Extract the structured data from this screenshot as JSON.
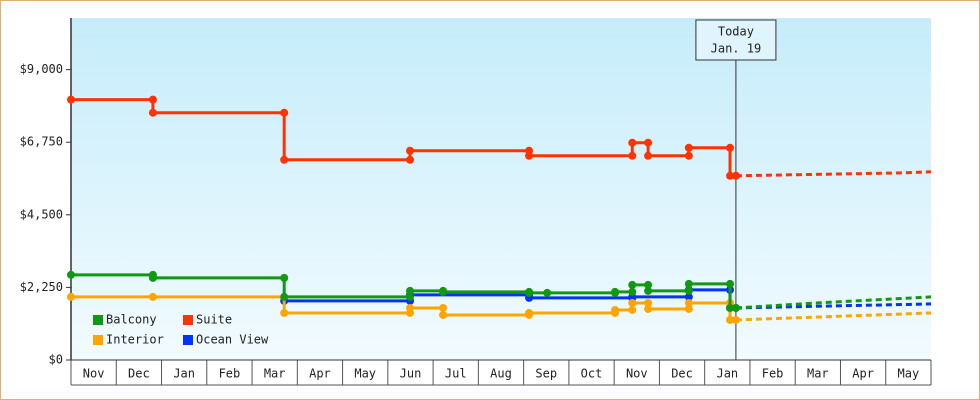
{
  "chart_data": {
    "type": "step-line",
    "xlim": [
      0,
      19
    ],
    "xticks": [
      {
        "value": 0.5,
        "label": "Nov"
      },
      {
        "value": 1.5,
        "label": "Dec"
      },
      {
        "value": 2.5,
        "label": "Jan"
      },
      {
        "value": 3.5,
        "label": "Feb"
      },
      {
        "value": 4.5,
        "label": "Mar"
      },
      {
        "value": 5.5,
        "label": "Apr"
      },
      {
        "value": 6.5,
        "label": "May"
      },
      {
        "value": 7.5,
        "label": "Jun"
      },
      {
        "value": 8.5,
        "label": "Jul"
      },
      {
        "value": 9.5,
        "label": "Aug"
      },
      {
        "value": 10.5,
        "label": "Sep"
      },
      {
        "value": 11.5,
        "label": "Oct"
      },
      {
        "value": 12.5,
        "label": "Nov"
      },
      {
        "value": 13.5,
        "label": "Dec"
      },
      {
        "value": 14.5,
        "label": "Jan"
      },
      {
        "value": 15.5,
        "label": "Feb"
      },
      {
        "value": 16.5,
        "label": "Mar"
      },
      {
        "value": 17.5,
        "label": "Apr"
      },
      {
        "value": 18.5,
        "label": "May"
      }
    ],
    "ylim": [
      0,
      10600
    ],
    "yticks": [
      {
        "value": 0,
        "label": "$0"
      },
      {
        "value": 2250,
        "label": "$2,250"
      },
      {
        "value": 4500,
        "label": "$4,500"
      },
      {
        "value": 6750,
        "label": "$6,750"
      },
      {
        "value": 9000,
        "label": "$9,000"
      }
    ],
    "legend": "lower left",
    "today": {
      "x": 14.69,
      "text": "Today",
      "date": "Jan. 19"
    },
    "series": [
      {
        "name": "Balcony",
        "color": "#119911",
        "x": [
          0,
          1.81,
          1.81,
          4.71,
          4.71,
          7.49,
          7.49,
          8.22,
          8.22,
          10.12,
          10.12,
          10.52,
          12.02,
          12.02,
          12.4,
          12.4,
          12.75,
          12.75,
          13.65,
          13.65,
          14.56,
          14.56,
          14.69
        ],
        "values": [
          2640,
          2640,
          2545,
          2545,
          1955,
          1955,
          2141,
          2141,
          2110,
          2110,
          2079,
          2079,
          2079,
          2110,
          2110,
          2327,
          2327,
          2141,
          2141,
          2358,
          2358,
          1613,
          1613
        ],
        "forecast_x": [
          14.69,
          16.5,
          19
        ],
        "forecast_values": [
          1613,
          1770,
          1955
        ]
      },
      {
        "name": "Suite",
        "color": "#ff3300",
        "x": [
          0,
          1.81,
          1.81,
          4.71,
          4.71,
          7.49,
          7.49,
          10.12,
          10.12,
          12.4,
          12.4,
          12.75,
          12.75,
          13.65,
          13.65,
          14.56,
          14.56,
          14.69
        ],
        "values": [
          8070,
          8070,
          7665,
          7665,
          6206,
          6206,
          6486,
          6486,
          6330,
          6330,
          6734,
          6734,
          6330,
          6330,
          6578,
          6578,
          5710,
          5710
        ],
        "forecast_x": [
          14.69,
          18.4,
          19
        ],
        "forecast_values": [
          5710,
          5800,
          5834
        ]
      },
      {
        "name": "Interior",
        "color": "#ffa500",
        "x": [
          0,
          1.81,
          4.71,
          4.71,
          7.49,
          7.49,
          8.22,
          8.22,
          10.12,
          10.12,
          12.02,
          12.02,
          12.4,
          12.4,
          12.75,
          12.75,
          13.65,
          13.65,
          14.56,
          14.56,
          14.69
        ],
        "values": [
          1955,
          1955,
          1955,
          1458,
          1458,
          1613,
          1613,
          1396,
          1396,
          1458,
          1458,
          1551,
          1551,
          1768,
          1768,
          1582,
          1582,
          1768,
          1768,
          1241,
          1241
        ],
        "forecast_x": [
          14.69,
          19
        ],
        "forecast_values": [
          1241,
          1458
        ]
      },
      {
        "name": "Ocean View",
        "color": "#0033ff",
        "x": [
          4.71,
          7.49,
          7.49,
          10.12,
          10.12,
          12.4,
          12.4,
          13.65,
          13.65,
          14.56,
          14.56,
          14.69
        ],
        "values": [
          1831,
          1831,
          2017,
          2017,
          1924,
          1924,
          1955,
          1955,
          2172,
          2172,
          1613,
          1613
        ],
        "forecast_x": [
          14.69,
          19
        ],
        "forecast_values": [
          1613,
          1738
        ]
      }
    ]
  }
}
